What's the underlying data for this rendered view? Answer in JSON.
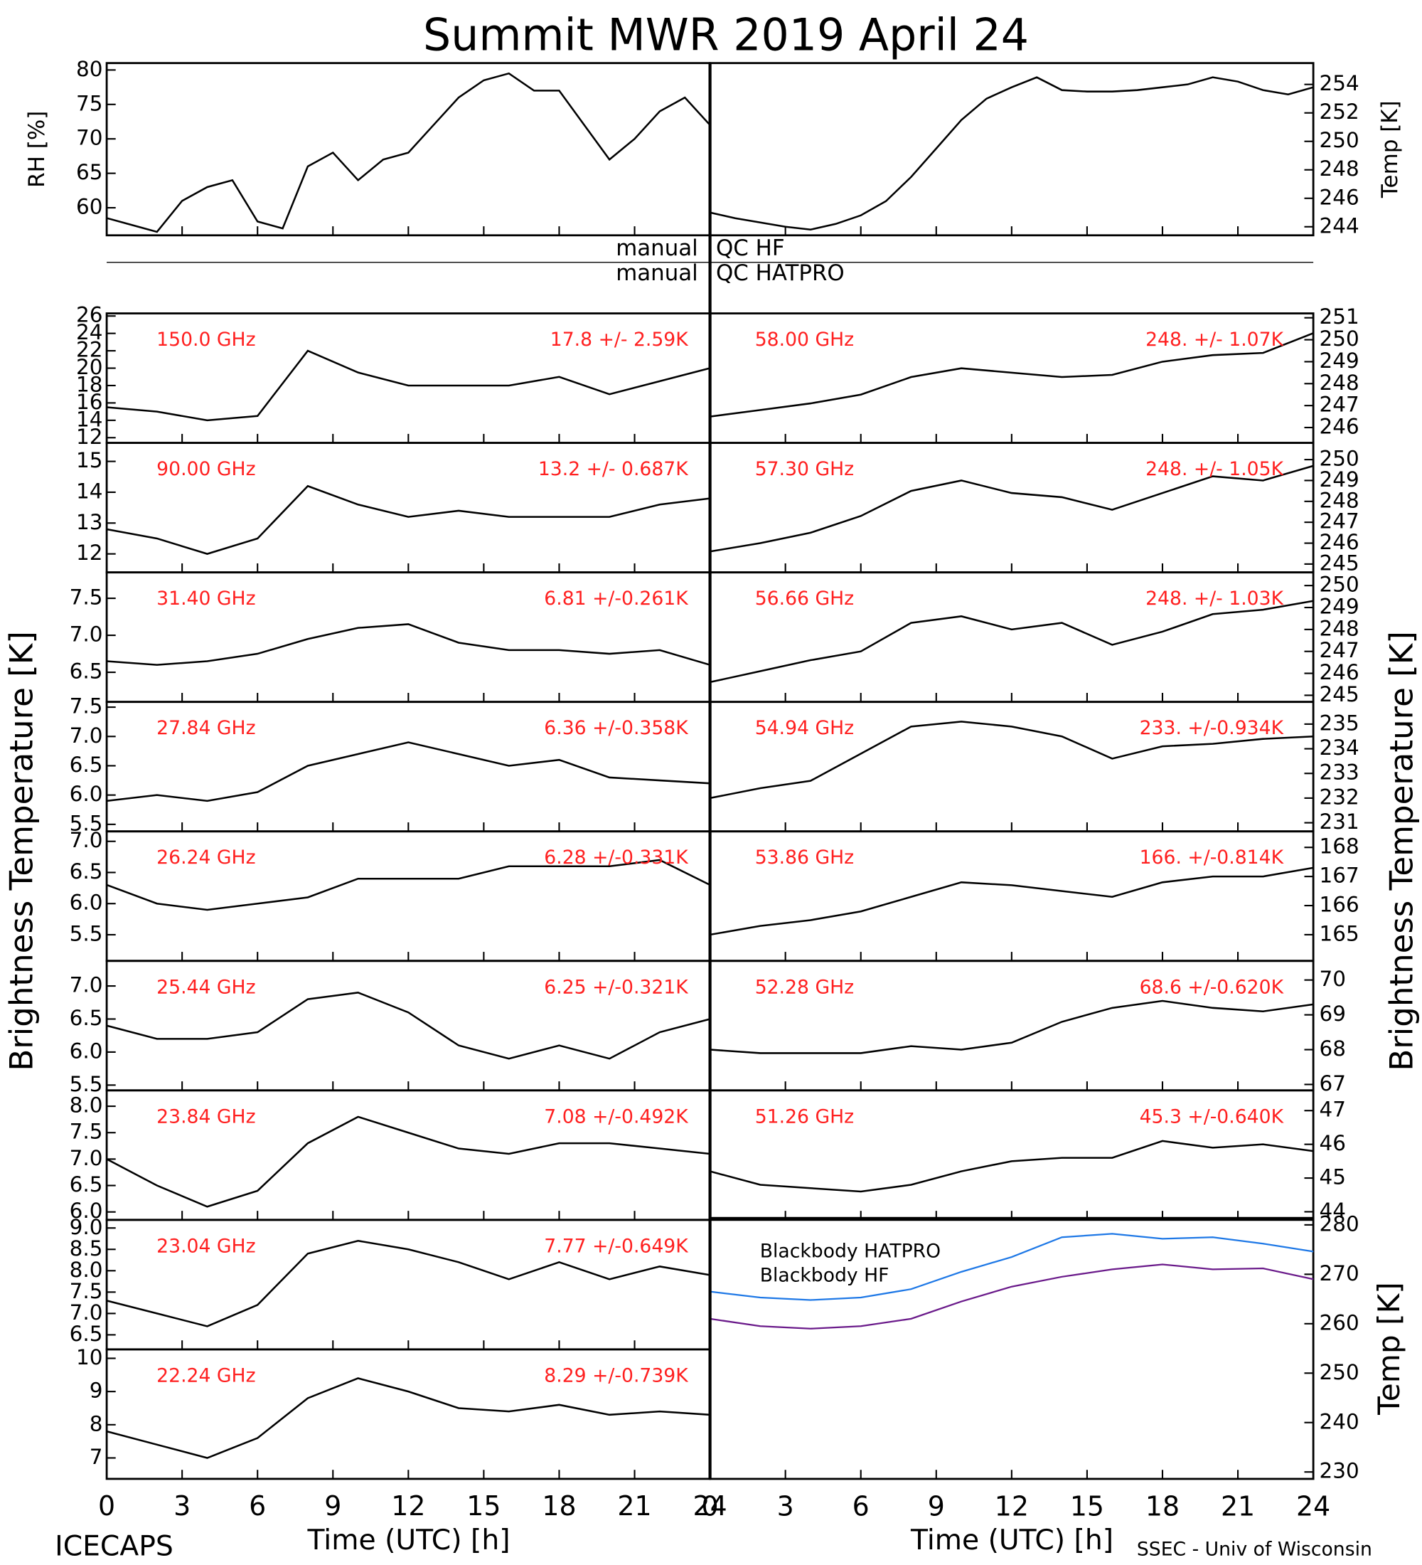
{
  "title": "Summit MWR 2019 April 24",
  "time_axis": {
    "xlim": [
      0,
      24
    ],
    "xticks": [
      0,
      3,
      6,
      9,
      12,
      15,
      18,
      21,
      24
    ],
    "label": "Time (UTC) [h]"
  },
  "qc": [
    {
      "label": "manual",
      "value": "QC HF"
    },
    {
      "label": "manual",
      "value": "QC HATPRO"
    }
  ],
  "channel_ylabel": "Brightness Temperature [K]",
  "footer_left": "ICECAPS",
  "footer_right": "SSEC - Univ of Wisconsin",
  "chart_data": [
    {
      "type": "line",
      "ylabel": "RH [%]",
      "color": "#000000",
      "x": [
        0,
        1,
        2,
        3,
        4,
        5,
        6,
        7,
        8,
        9,
        10,
        11,
        12,
        13,
        14,
        15,
        16,
        17,
        18,
        19,
        20,
        21,
        22,
        23,
        24
      ],
      "values": [
        58.5,
        57.5,
        56.5,
        61,
        63,
        64,
        58,
        57,
        66,
        68,
        64,
        67,
        68,
        72,
        76,
        78.5,
        79.5,
        77,
        77,
        72,
        67,
        70,
        74,
        76,
        72
      ],
      "ylim": [
        56,
        81
      ],
      "yticks": [
        60,
        65,
        70,
        75,
        80
      ]
    },
    {
      "type": "line",
      "ylabel": "Temp [K]",
      "color": "#000000",
      "x": [
        0,
        1,
        2,
        3,
        4,
        5,
        6,
        7,
        8,
        9,
        10,
        11,
        12,
        13,
        14,
        15,
        16,
        17,
        18,
        19,
        20,
        21,
        22,
        23,
        24
      ],
      "values": [
        245,
        244.6,
        244.3,
        244,
        243.8,
        244.2,
        244.8,
        245.8,
        247.5,
        249.5,
        251.5,
        253,
        253.8,
        254.5,
        253.6,
        253.5,
        253.5,
        253.6,
        253.8,
        254,
        254.5,
        254.2,
        253.6,
        253.3,
        253.8
      ],
      "ylim": [
        243.4,
        255.5
      ],
      "yticks": [
        244,
        246,
        248,
        250,
        252,
        254
      ]
    },
    {
      "type": "line",
      "label": "150.0 GHz",
      "stats": "17.8 +/-  2.59K",
      "color": "#000000",
      "x": [
        0,
        2,
        4,
        6,
        8,
        10,
        12,
        14,
        16,
        18,
        20,
        22,
        24
      ],
      "values": [
        15.5,
        15,
        14,
        14.5,
        22,
        19.5,
        18,
        18,
        18,
        19,
        17,
        18.5,
        20
      ],
      "ylim": [
        11.4,
        26.3
      ],
      "yticks": [
        12,
        14,
        16,
        18,
        20,
        22,
        24,
        26
      ]
    },
    {
      "type": "line",
      "label": "90.00 GHz",
      "stats": "13.2 +/- 0.687K",
      "color": "#000000",
      "x": [
        0,
        2,
        4,
        6,
        8,
        10,
        12,
        14,
        16,
        18,
        20,
        22,
        24
      ],
      "values": [
        12.8,
        12.5,
        12,
        12.5,
        14.2,
        13.6,
        13.2,
        13.4,
        13.2,
        13.2,
        13.2,
        13.6,
        13.8
      ],
      "ylim": [
        11.4,
        15.6
      ],
      "yticks": [
        12,
        13,
        14,
        15
      ]
    },
    {
      "type": "line",
      "label": "31.40 GHz",
      "stats": "6.81 +/-0.261K",
      "color": "#000000",
      "x": [
        0,
        2,
        4,
        6,
        8,
        10,
        12,
        14,
        16,
        18,
        20,
        22,
        24
      ],
      "values": [
        6.65,
        6.6,
        6.65,
        6.75,
        6.95,
        7.1,
        7.15,
        6.9,
        6.8,
        6.8,
        6.75,
        6.8,
        6.6
      ],
      "ylim": [
        6.1,
        7.85
      ],
      "yticks": [
        6.5,
        {
          "value": 7,
          "label": "7.0"
        },
        7.5
      ]
    },
    {
      "type": "line",
      "label": "27.84 GHz",
      "stats": "6.36 +/-0.358K",
      "color": "#000000",
      "x": [
        0,
        2,
        4,
        6,
        8,
        10,
        12,
        14,
        16,
        18,
        20,
        22,
        24
      ],
      "values": [
        5.9,
        6.0,
        5.9,
        6.05,
        6.5,
        6.7,
        6.9,
        6.7,
        6.5,
        6.6,
        6.3,
        6.25,
        6.2
      ],
      "ylim": [
        5.38,
        7.59
      ],
      "yticks": [
        5.5,
        {
          "value": 6,
          "label": "6.0"
        },
        6.5,
        {
          "value": 7,
          "label": "7.0"
        },
        7.5
      ]
    },
    {
      "type": "line",
      "label": "26.24 GHz",
      "stats": "6.28 +/-0.331K",
      "color": "#000000",
      "x": [
        0,
        2,
        4,
        6,
        8,
        10,
        12,
        14,
        16,
        18,
        20,
        22,
        24
      ],
      "values": [
        6.3,
        6.0,
        5.9,
        6.0,
        6.1,
        6.4,
        6.4,
        6.4,
        6.6,
        6.6,
        6.6,
        6.7,
        6.3
      ],
      "ylim": [
        5.08,
        7.16
      ],
      "yticks": [
        5.5,
        {
          "value": 6,
          "label": "6.0"
        },
        6.5,
        {
          "value": 7,
          "label": "7.0"
        }
      ]
    },
    {
      "type": "line",
      "label": "25.44 GHz",
      "stats": "6.25 +/-0.321K",
      "color": "#000000",
      "x": [
        0,
        2,
        4,
        6,
        8,
        10,
        12,
        14,
        16,
        18,
        20,
        22,
        24
      ],
      "values": [
        6.4,
        6.2,
        6.2,
        6.3,
        6.8,
        6.9,
        6.6,
        6.1,
        5.9,
        6.1,
        5.9,
        6.3,
        6.5
      ],
      "ylim": [
        5.42,
        7.38
      ],
      "yticks": [
        5.5,
        {
          "value": 6,
          "label": "6.0"
        },
        6.5,
        {
          "value": 7,
          "label": "7.0"
        }
      ]
    },
    {
      "type": "line",
      "label": "23.84 GHz",
      "stats": "7.08 +/-0.492K",
      "color": "#000000",
      "x": [
        0,
        2,
        4,
        6,
        8,
        10,
        12,
        14,
        16,
        18,
        20,
        22,
        24
      ],
      "values": [
        7.0,
        6.5,
        6.1,
        6.4,
        7.3,
        7.8,
        7.5,
        7.2,
        7.1,
        7.3,
        7.3,
        7.2,
        7.1
      ],
      "ylim": [
        5.85,
        8.3
      ],
      "yticks": [
        {
          "value": 6,
          "label": "6.0"
        },
        6.5,
        {
          "value": 7,
          "label": "7.0"
        },
        7.5,
        {
          "value": 8,
          "label": "8.0"
        }
      ]
    },
    {
      "type": "line",
      "label": "23.04 GHz",
      "stats": "7.77 +/-0.649K",
      "color": "#000000",
      "x": [
        0,
        2,
        4,
        6,
        8,
        10,
        12,
        14,
        16,
        18,
        20,
        22,
        24
      ],
      "values": [
        7.3,
        7.0,
        6.7,
        7.2,
        8.4,
        8.7,
        8.5,
        8.2,
        7.8,
        8.2,
        7.8,
        8.1,
        7.9
      ],
      "ylim": [
        6.16,
        9.19
      ],
      "yticks": [
        6.5,
        {
          "value": 7,
          "label": "7.0"
        },
        7.5,
        {
          "value": 8,
          "label": "8.0"
        },
        8.5,
        {
          "value": 9,
          "label": "9.0"
        }
      ]
    },
    {
      "type": "line",
      "label": "22.24 GHz",
      "stats": "8.29 +/-0.739K",
      "color": "#000000",
      "x": [
        0,
        2,
        4,
        6,
        8,
        10,
        12,
        14,
        16,
        18,
        20,
        22,
        24
      ],
      "values": [
        7.8,
        7.4,
        7.0,
        7.6,
        8.8,
        9.4,
        9.0,
        8.5,
        8.4,
        8.6,
        8.3,
        8.4,
        8.3
      ],
      "ylim": [
        6.37,
        10.27
      ],
      "yticks": [
        7,
        8,
        9,
        10
      ]
    },
    {
      "type": "line",
      "label": "58.00 GHz",
      "stats": "248. +/- 1.07K",
      "color": "#000000",
      "x": [
        0,
        2,
        4,
        6,
        8,
        10,
        12,
        14,
        16,
        18,
        20,
        22,
        24
      ],
      "values": [
        246.5,
        246.8,
        247.1,
        247.5,
        248.3,
        248.7,
        248.5,
        248.3,
        248.4,
        249,
        249.3,
        249.4,
        250.3
      ],
      "ylim": [
        245.3,
        251.2
      ],
      "yticks": [
        246,
        247,
        248,
        249,
        250,
        251
      ]
    },
    {
      "type": "line",
      "label": "57.30 GHz",
      "stats": "248. +/- 1.05K",
      "color": "#000000",
      "x": [
        0,
        2,
        4,
        6,
        8,
        10,
        12,
        14,
        16,
        18,
        20,
        22,
        24
      ],
      "values": [
        245.6,
        246,
        246.5,
        247.3,
        248.5,
        249,
        248.4,
        248.2,
        247.6,
        248.4,
        249.2,
        249,
        249.7
      ],
      "ylim": [
        244.6,
        250.8
      ],
      "yticks": [
        245,
        246,
        247,
        248,
        249,
        250
      ]
    },
    {
      "type": "line",
      "label": "56.66 GHz",
      "stats": "248. +/- 1.03K",
      "color": "#000000",
      "x": [
        0,
        2,
        4,
        6,
        8,
        10,
        12,
        14,
        16,
        18,
        20,
        22,
        24
      ],
      "values": [
        245.6,
        246.1,
        246.6,
        247,
        248.3,
        248.6,
        248.0,
        248.3,
        247.3,
        247.9,
        248.7,
        248.9,
        249.3
      ],
      "ylim": [
        244.7,
        250.6
      ],
      "yticks": [
        245,
        246,
        247,
        248,
        249,
        250
      ]
    },
    {
      "type": "line",
      "label": "54.94 GHz",
      "stats": "233. +/-0.934K",
      "color": "#000000",
      "x": [
        0,
        2,
        4,
        6,
        8,
        10,
        12,
        14,
        16,
        18,
        20,
        22,
        24
      ],
      "values": [
        232,
        232.4,
        232.7,
        233.8,
        234.9,
        235.1,
        234.9,
        234.5,
        233.6,
        234.1,
        234.2,
        234.4,
        234.5
      ],
      "ylim": [
        230.65,
        235.9
      ],
      "yticks": [
        231,
        232,
        233,
        234,
        235
      ]
    },
    {
      "type": "line",
      "label": "53.86 GHz",
      "stats": "166. +/-0.814K",
      "color": "#000000",
      "x": [
        0,
        2,
        4,
        6,
        8,
        10,
        12,
        14,
        16,
        18,
        20,
        22,
        24
      ],
      "values": [
        165,
        165.3,
        165.5,
        165.8,
        166.3,
        166.8,
        166.7,
        166.5,
        166.3,
        166.8,
        167,
        167,
        167.3
      ],
      "ylim": [
        164.1,
        168.55
      ],
      "yticks": [
        165,
        166,
        167,
        168
      ]
    },
    {
      "type": "line",
      "label": "52.28 GHz",
      "stats": "68.6 +/-0.620K",
      "color": "#000000",
      "x": [
        0,
        2,
        4,
        6,
        8,
        10,
        12,
        14,
        16,
        18,
        20,
        22,
        24
      ],
      "values": [
        68,
        67.9,
        67.9,
        67.9,
        68.1,
        68.0,
        68.2,
        68.8,
        69.2,
        69.4,
        69.2,
        69.1,
        69.3
      ],
      "ylim": [
        66.83,
        70.55
      ],
      "yticks": [
        67,
        68,
        69,
        70
      ]
    },
    {
      "type": "line",
      "label": "51.26 GHz",
      "stats": "45.3 +/-0.640K",
      "color": "#000000",
      "x": [
        0,
        2,
        4,
        6,
        8,
        10,
        12,
        14,
        16,
        18,
        20,
        22,
        24
      ],
      "values": [
        45.2,
        44.8,
        44.7,
        44.6,
        44.8,
        45.2,
        45.5,
        45.6,
        45.6,
        46.1,
        45.9,
        46.0,
        45.8
      ],
      "ylim": [
        43.76,
        47.6
      ],
      "yticks": [
        44,
        45,
        46,
        47
      ]
    },
    {
      "type": "line",
      "ylabel": "Temp [K]",
      "x": [
        0,
        2,
        4,
        6,
        8,
        10,
        12,
        14,
        16,
        18,
        20,
        22,
        24
      ],
      "series": [
        {
          "name": "Blackbody HATPRO",
          "color": "#1e78e6",
          "values": [
            266.5,
            265.3,
            264.8,
            265.3,
            267,
            270.5,
            273.5,
            277.5,
            278.2,
            277.2,
            277.5,
            276.2,
            274.6
          ]
        },
        {
          "name": "Blackbody HF",
          "color": "#6a1a8a",
          "values": [
            261,
            259.5,
            259,
            259.5,
            261,
            264.5,
            267.5,
            269.5,
            271,
            272,
            271,
            271.2,
            269
          ]
        }
      ],
      "ylim": [
        228.6,
        281.4
      ],
      "yticks": [
        230,
        240,
        250,
        260,
        270,
        280
      ]
    }
  ]
}
